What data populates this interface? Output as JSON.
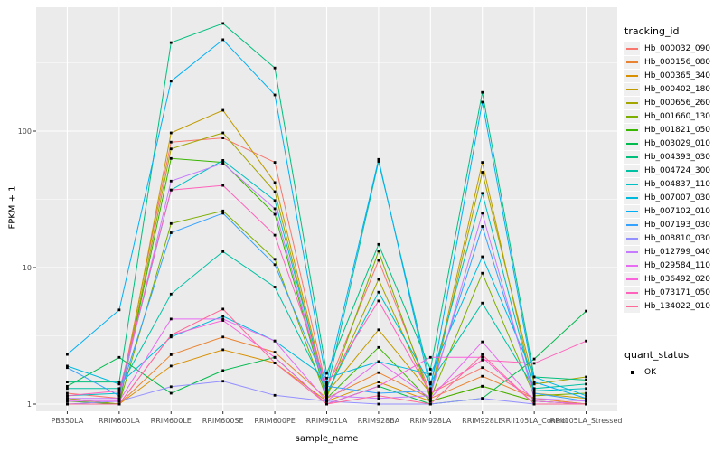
{
  "chart_data": {
    "type": "line",
    "title": "",
    "xlabel": "sample_name",
    "ylabel": "FPKM + 1",
    "y_scale": "log10",
    "legend_position": "right",
    "grid": true,
    "panel_bg": "#EBEBEB",
    "grid_color": "#FFFFFF",
    "point_color": "#000000",
    "axis_text_color": "#4D4D4D",
    "y_ticks": [
      1,
      10,
      100
    ],
    "y_minor_ticks": [
      3.162,
      31.62,
      316.2
    ],
    "ylim": [
      0.89,
      810
    ],
    "categories": [
      "PB350LA",
      "RRIM600LA",
      "RRIM600LE",
      "RRIM600SE",
      "RRIM600PE",
      "RRIM901LA",
      "RRIM928BA",
      "RRIM928LA",
      "RRIM928LE",
      "RRII105LA_Control",
      "RRII105LA_Stressed"
    ],
    "legend_title": "tracking_id",
    "quant_legend_title": "quant_status",
    "quant_legend_label": "OK",
    "series": [
      {
        "name": "Hb_000032_090",
        "color": "#F8766D",
        "values": [
          1.2,
          1.1,
          83,
          89,
          59,
          1.3,
          11.3,
          1.2,
          1.85,
          1.1,
          1.0
        ]
      },
      {
        "name": "Hb_000156_080",
        "color": "#EA8331",
        "values": [
          1.0,
          1.0,
          2.3,
          3.1,
          2.4,
          1.1,
          1.7,
          1.1,
          1.6,
          1.1,
          1.0
        ]
      },
      {
        "name": "Hb_000365_340",
        "color": "#D89000",
        "values": [
          1.0,
          1.0,
          1.9,
          2.5,
          2.0,
          1.05,
          1.45,
          1.05,
          1.35,
          1.05,
          1.0
        ]
      },
      {
        "name": "Hb_000402_180",
        "color": "#C09B00",
        "values": [
          1.1,
          1.0,
          97,
          142,
          42,
          1.2,
          3.5,
          1.2,
          59,
          1.2,
          1.1
        ]
      },
      {
        "name": "Hb_000656_260",
        "color": "#A3A500",
        "values": [
          1.1,
          1.0,
          74,
          97,
          36,
          1.15,
          8.2,
          1.15,
          50,
          1.4,
          1.58
        ]
      },
      {
        "name": "Hb_001660_130",
        "color": "#7CAE00",
        "values": [
          1.0,
          1.0,
          21,
          26,
          11.5,
          1.1,
          13.2,
          1.1,
          9.1,
          1.15,
          1.2
        ]
      },
      {
        "name": "Hb_001821_050",
        "color": "#39B600",
        "values": [
          1.05,
          1.0,
          63,
          59,
          24.6,
          1.1,
          2.6,
          1.05,
          1.35,
          1.05,
          1.0
        ]
      },
      {
        "name": "Hb_003029_010",
        "color": "#00BB4E",
        "values": [
          1.35,
          2.2,
          1.2,
          1.76,
          2.2,
          1.0,
          1.35,
          1.0,
          1.1,
          2.14,
          4.8
        ]
      },
      {
        "name": "Hb_004393_030",
        "color": "#00BF7D",
        "values": [
          1.45,
          1.45,
          445,
          615,
          290,
          1.68,
          14.8,
          1.8,
          192,
          1.58,
          1.5
        ]
      },
      {
        "name": "Hb_004724_300",
        "color": "#00C1A3",
        "values": [
          1.3,
          1.3,
          6.4,
          13.1,
          7.2,
          1.25,
          60,
          1.45,
          5.5,
          1.3,
          1.4
        ]
      },
      {
        "name": "Hb_004837_110",
        "color": "#00BFC4",
        "values": [
          1.15,
          1.2,
          37,
          61,
          31,
          1.2,
          6.6,
          1.4,
          35,
          1.25,
          1.3
        ]
      },
      {
        "name": "Hb_007007_030",
        "color": "#00BADE",
        "values": [
          1.9,
          1.4,
          3.1,
          4.4,
          2.9,
          1.55,
          2.05,
          1.65,
          12,
          1.58,
          1.15
        ]
      },
      {
        "name": "Hb_007102_010",
        "color": "#00B0F6",
        "values": [
          2.31,
          4.9,
          232,
          467,
          184,
          1.45,
          62,
          1.3,
          163,
          1.45,
          1.1
        ]
      },
      {
        "name": "Hb_007193_030",
        "color": "#35A2FF",
        "values": [
          1.85,
          1.15,
          18,
          25,
          10.5,
          1.35,
          1.2,
          1.25,
          20,
          1.2,
          1.05
        ]
      },
      {
        "name": "Hb_008810_030",
        "color": "#9590FF",
        "values": [
          1.0,
          1.05,
          1.34,
          1.47,
          1.16,
          1.05,
          1.0,
          1.0,
          1.1,
          1.0,
          1.0
        ]
      },
      {
        "name": "Hb_012799_040",
        "color": "#C77CFF",
        "values": [
          1.1,
          1.1,
          43,
          58,
          27,
          1.15,
          1.1,
          1.15,
          25,
          1.1,
          1.05
        ]
      },
      {
        "name": "Hb_029584_110",
        "color": "#E76BF3",
        "values": [
          1.05,
          1.05,
          4.2,
          4.2,
          2.9,
          1.05,
          2.05,
          1.1,
          2.86,
          1.05,
          1.0
        ]
      },
      {
        "name": "Hb_036492_020",
        "color": "#FA62DB",
        "values": [
          1.0,
          1.0,
          3.2,
          4.1,
          2.2,
          1.0,
          1.35,
          2.2,
          2.2,
          1.0,
          1.0
        ]
      },
      {
        "name": "Hb_073171_050",
        "color": "#FF62BC",
        "values": [
          1.15,
          1.25,
          37,
          40,
          17.3,
          1.4,
          5.7,
          1.2,
          2.1,
          1.99,
          2.9
        ]
      },
      {
        "name": "Hb_134022_010",
        "color": "#FF6A98",
        "values": [
          1.0,
          1.0,
          3.2,
          4.97,
          2.0,
          1.0,
          1.15,
          1.0,
          2.3,
          1.0,
          1.0
        ]
      }
    ]
  }
}
